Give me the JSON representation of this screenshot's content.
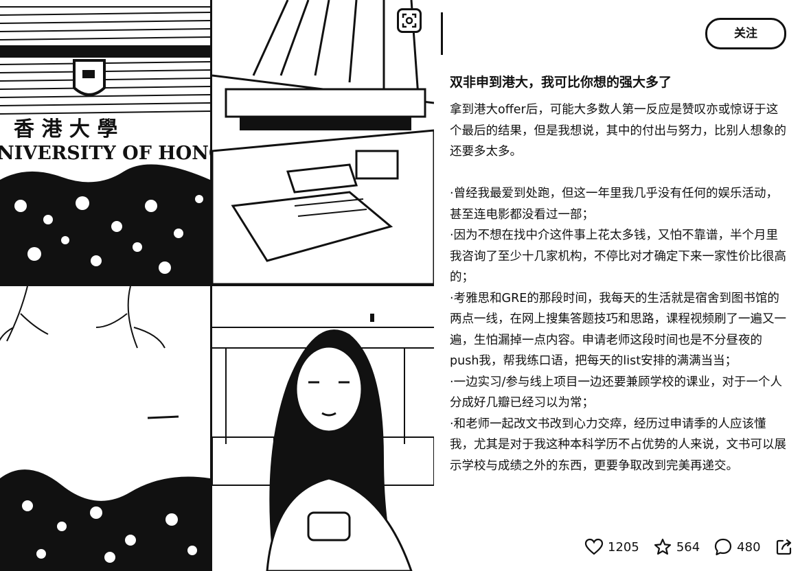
{
  "post": {
    "follow_label": "关注",
    "title": "双非申到港大，我可比你想的强大多了",
    "intro": "拿到港大offer后，可能大多数人第一反应是赞叹亦或惊讶于这个最后的结果，但是我想说，其中的付出与努力，比别人想象的还要多太多。",
    "points": [
      "·曾经我最爱到处跑，但这一年里我几乎没有任何的娱乐活动，甚至连电影都没看过一部；",
      "·因为不想在找中介这件事上花太多钱，又怕不靠谱，半个月里我咨询了至少十几家机构，不停比对才确定下来一家性价比很高的；",
      "·考雅思和GRE的那段时间，我每天的生活就是宿舍到图书馆的两点一线，在网上搜集答题技巧和思路，课程视频刷了一遍又一遍，生怕漏掉一点内容。申请老师这段时间也是不分昼夜的push我，帮我练口语，把每天的list安排的满满当当；",
      "·一边实习/参与线上项目一边还要兼顾学校的课业，对于一个人分成好几瓣已经习以为常；",
      "·和老师一起改文书改到心力交瘁，经历过申请季的人应该懂我，尤其是对于我这种本科学历不占优势的人来说，文书可以展示学校与成绩之外的东西，更要争取改到完美再递交。"
    ]
  },
  "stats": {
    "likes": "1205",
    "favorites": "564",
    "comments": "480"
  },
  "collage": {
    "sign_cn": "香 港 大 學",
    "sign_en": "NIVERSITY OF HONG"
  },
  "icons": {
    "like": "heart-icon",
    "favorite": "star-icon",
    "comment": "comment-icon",
    "share": "share-icon",
    "corner": "scan-icon"
  }
}
